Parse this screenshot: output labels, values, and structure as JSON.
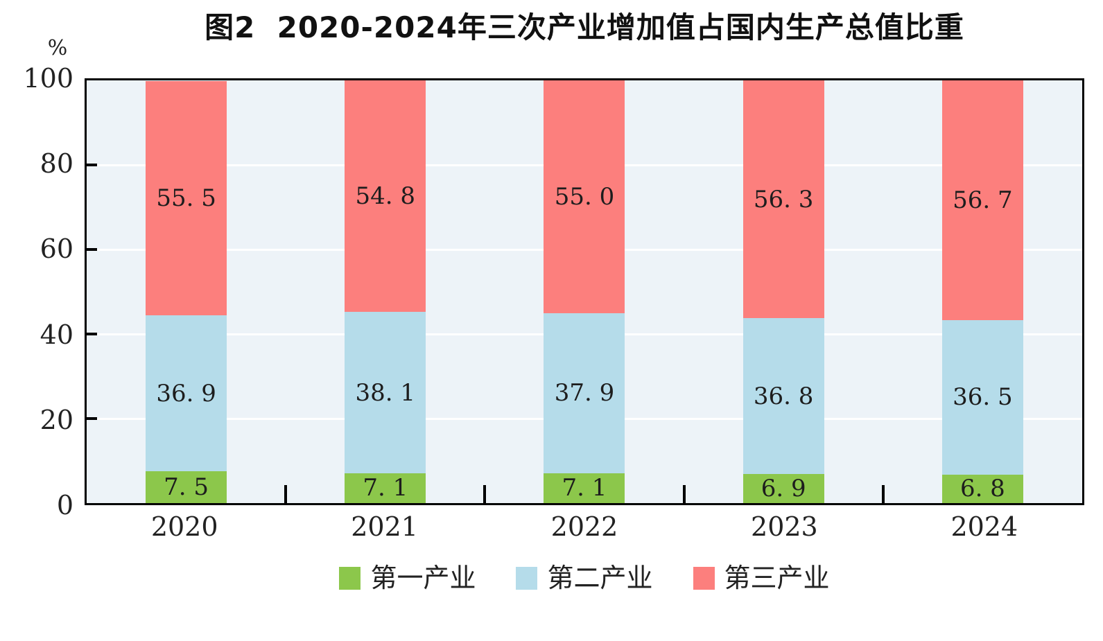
{
  "chart_data": {
    "type": "bar",
    "stacked": true,
    "title": "图2  2020-2024年三次产业增加值占国内生产总值比重",
    "unit_label": "%",
    "categories": [
      "2020",
      "2021",
      "2022",
      "2023",
      "2024"
    ],
    "series": [
      {
        "name": "第一产业",
        "color": "#8CC74B",
        "values": [
          7.5,
          7.1,
          7.1,
          6.9,
          6.8
        ],
        "labels": [
          "7. 5",
          "7. 1",
          "7. 1",
          "6. 9",
          "6. 8"
        ]
      },
      {
        "name": "第二产业",
        "color": "#B5DCEA",
        "values": [
          36.9,
          38.1,
          37.9,
          36.8,
          36.5
        ],
        "labels": [
          "36. 9",
          "38. 1",
          "37. 9",
          "36. 8",
          "36. 5"
        ]
      },
      {
        "name": "第三产业",
        "color": "#FC7F7D",
        "values": [
          55.5,
          54.8,
          55.0,
          56.3,
          56.7
        ],
        "labels": [
          "55. 5",
          "54. 8",
          "55. 0",
          "56. 3",
          "56. 7"
        ]
      }
    ],
    "y_axis": {
      "min": 0,
      "max": 100,
      "ticks": [
        "0",
        "20",
        "40",
        "60",
        "80",
        "100"
      ],
      "grid": true,
      "grid_color": "#ffffff"
    },
    "legend": {
      "position": "bottom",
      "entries": [
        "第一产业",
        "第二产业",
        "第三产业"
      ]
    },
    "plot_background": "#EDF3F8"
  }
}
